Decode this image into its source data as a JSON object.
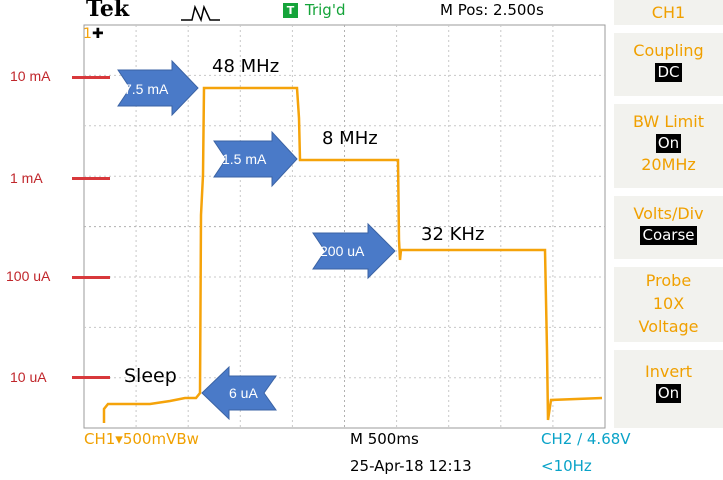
{
  "top_bar": {
    "brand": "Tek",
    "trigger_badge": "T",
    "trigger_status": "Trig'd",
    "position": "M Pos: 2.500s"
  },
  "side_menu": {
    "channel": "CH1",
    "coupling": {
      "label": "Coupling",
      "value": "DC"
    },
    "bw_limit": {
      "label": "BW Limit",
      "value": "On",
      "freq": "20MHz"
    },
    "volts_div": {
      "label": "Volts/Div",
      "value": "Coarse"
    },
    "probe": {
      "label": "Probe",
      "value1": "10X",
      "value2": "Voltage"
    },
    "invert": {
      "label": "Invert",
      "value": "On"
    }
  },
  "bottom_bar": {
    "ch1_scale": "CH1▾500mVBw",
    "time_div": "M 500ms",
    "date_time": "25-Apr-18 12:13",
    "ch2_trigger": "CH2 ∕ 4.68V",
    "trigger_freq": "<10Hz"
  },
  "scale_labels": [
    "10 mA",
    "1 mA",
    "100 uA",
    "10 uA"
  ],
  "annotations": {
    "freq_48": "48 MHz",
    "freq_8": "8 MHz",
    "freq_32": "32 KHz",
    "sleep": "Sleep",
    "arrow_7_5": "7.5 mA",
    "arrow_1_5": "1.5 mA",
    "arrow_200": "200 uA",
    "arrow_6": "6 uA"
  },
  "ch1_marker": "1",
  "colors": {
    "trace": "#f5a30a",
    "arrow": "#4a7ac8",
    "scale_red": "#d8383b",
    "trigger_green": "#15a43a",
    "menu_orange": "#f0a000",
    "ch2_cyan": "#0aa3c8"
  }
}
